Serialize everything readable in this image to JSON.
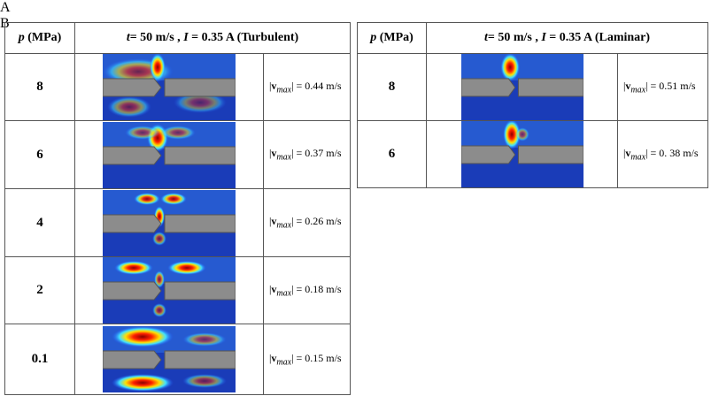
{
  "panels": [
    {
      "letter": "A",
      "header": {
        "symbol": "p",
        "unit": " (MPa)",
        "condition": [
          {
            "text": "t",
            "italic": true
          },
          {
            "text": "= 50 m/s , "
          },
          {
            "text": "I",
            "italic": true
          },
          {
            "text": " = 0.35 A (Turbulent)"
          }
        ]
      },
      "rows": [
        {
          "p": "8",
          "speed": " = 0.44 m/s"
        },
        {
          "p": "6",
          "speed": " = 0.37 m/s"
        },
        {
          "p": "4",
          "speed": " = 0.26 m/s"
        },
        {
          "p": "2",
          "speed": " = 0.18 m/s"
        },
        {
          "p": "0.1",
          "speed": " = 0.15 m/s"
        }
      ]
    },
    {
      "letter": "B",
      "header": {
        "symbol": "p",
        "unit": " (MPa)",
        "condition": [
          {
            "text": "t",
            "italic": true
          },
          {
            "text": "= 50 m/s , "
          },
          {
            "text": "I",
            "italic": true
          },
          {
            "text": " = 0.35 A (Laminar)"
          }
        ]
      },
      "rows": [
        {
          "p": "8",
          "speed": " = 0.51 m/s"
        },
        {
          "p": "6",
          "speed": " = 0. 38 m/s"
        }
      ]
    }
  ],
  "vmax_label": {
    "open": "|",
    "symbol": "v",
    "sub": "max",
    "close": "|"
  }
}
